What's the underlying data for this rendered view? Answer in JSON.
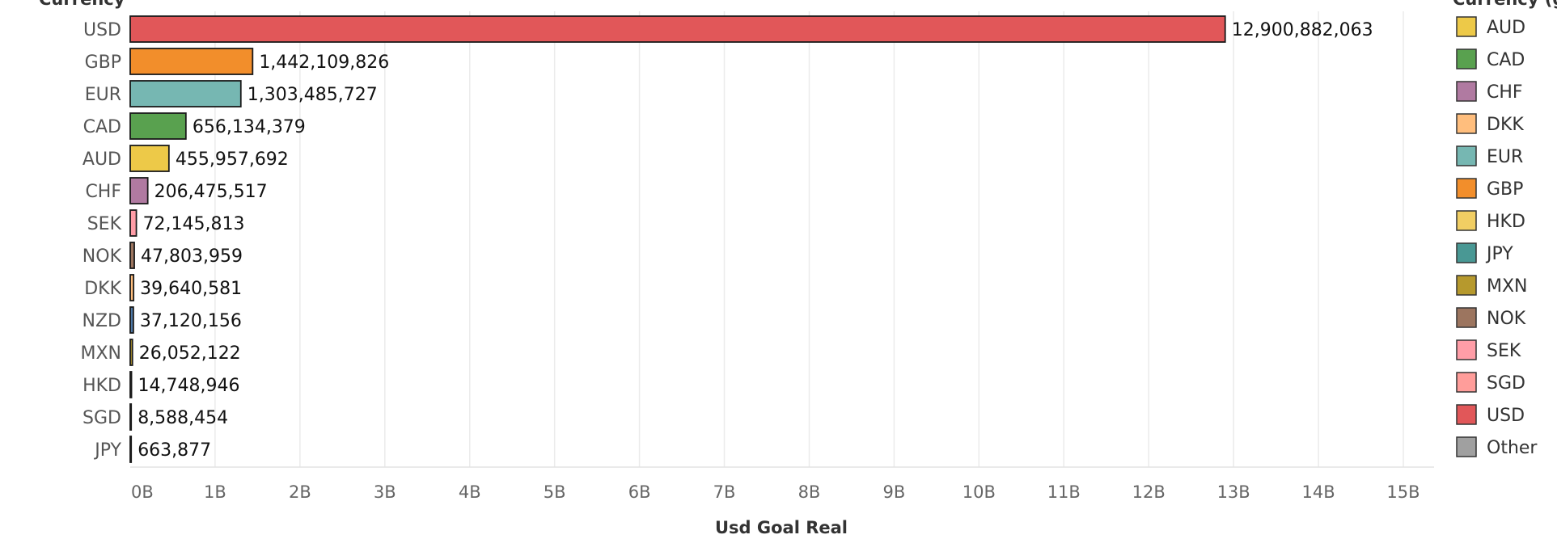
{
  "chart_data": {
    "type": "bar",
    "orientation": "horizontal",
    "row_header": "Currency",
    "xlabel": "Usd Goal Real",
    "legend_title": "Currency (g",
    "legend_position": "right",
    "xlim": [
      0,
      15000000000
    ],
    "x_ticks": [
      0,
      1000000000,
      2000000000,
      3000000000,
      4000000000,
      5000000000,
      6000000000,
      7000000000,
      8000000000,
      9000000000,
      10000000000,
      11000000000,
      12000000000,
      13000000000,
      14000000000,
      15000000000
    ],
    "x_tick_labels": [
      "0B",
      "1B",
      "2B",
      "3B",
      "4B",
      "5B",
      "6B",
      "7B",
      "8B",
      "9B",
      "10B",
      "11B",
      "12B",
      "13B",
      "14B",
      "15B"
    ],
    "grid": "vertical",
    "categories": [
      "USD",
      "GBP",
      "EUR",
      "CAD",
      "AUD",
      "CHF",
      "SEK",
      "NOK",
      "DKK",
      "NZD",
      "MXN",
      "HKD",
      "SGD",
      "JPY"
    ],
    "values": [
      12900882063,
      1442109826,
      1303485727,
      656134379,
      455957692,
      206475517,
      72145813,
      47803959,
      39640581,
      37120156,
      26052122,
      14748946,
      8588454,
      663877
    ],
    "value_labels": [
      "12,900,882,063",
      "1,442,109,826",
      "1,303,485,727",
      "656,134,379",
      "455,957,692",
      "206,475,517",
      "72,145,813",
      "47,803,959",
      "39,640,581",
      "37,120,156",
      "26,052,122",
      "14,748,946",
      "8,588,454",
      "663,877"
    ],
    "bar_colors": [
      "#e15759",
      "#f28e2b",
      "#76b7b2",
      "#59a14f",
      "#edc948",
      "#b07aa1",
      "#ff9da7",
      "#9c755f",
      "#ffbe7d",
      "#4e79a7",
      "#b6992d",
      "#f1ce63",
      "#ff9d9a",
      "#499894"
    ],
    "legend": [
      {
        "label": "AUD",
        "color": "#edc948"
      },
      {
        "label": "CAD",
        "color": "#59a14f"
      },
      {
        "label": "CHF",
        "color": "#b07aa1"
      },
      {
        "label": "DKK",
        "color": "#ffbe7d"
      },
      {
        "label": "EUR",
        "color": "#76b7b2"
      },
      {
        "label": "GBP",
        "color": "#f28e2b"
      },
      {
        "label": "HKD",
        "color": "#f1ce63"
      },
      {
        "label": "JPY",
        "color": "#499894"
      },
      {
        "label": "MXN",
        "color": "#b6992d"
      },
      {
        "label": "NOK",
        "color": "#9c755f"
      },
      {
        "label": "SEK",
        "color": "#ff9da7"
      },
      {
        "label": "SGD",
        "color": "#ff9d9a"
      },
      {
        "label": "USD",
        "color": "#e15759"
      },
      {
        "label": "Other",
        "color": "#a0a0a0"
      }
    ]
  }
}
